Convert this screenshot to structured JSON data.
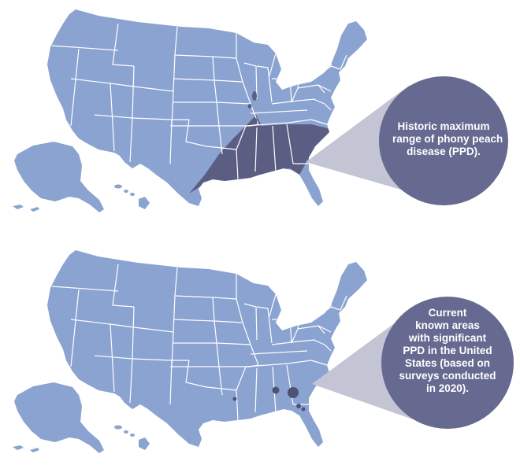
{
  "panels": [
    {
      "id": "historic",
      "callout_lines": [
        "Historic maximum",
        "range of phony peach",
        "disease (PPD)."
      ],
      "region_color": "#5b5d82"
    },
    {
      "id": "current",
      "callout_lines": [
        "Current",
        "known areas",
        "with significant",
        "PPD in the United",
        "States (based on",
        "surveys conducted",
        "in 2020)."
      ],
      "dot_color": "#4f5275"
    }
  ],
  "colors": {
    "land": "#8aa3d0",
    "border": "#ffffff",
    "callout_circle": "#666990",
    "callout_wedge": "#c4c5d4"
  }
}
